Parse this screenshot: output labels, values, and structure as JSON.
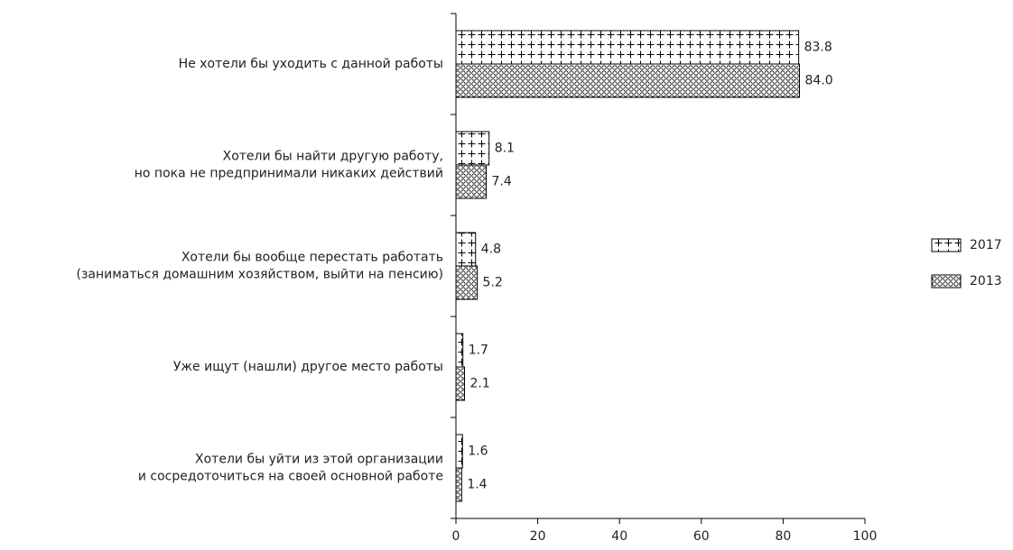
{
  "chart_data": {
    "type": "barh",
    "categories": [
      [
        "Не хотели бы уходить с данной работы"
      ],
      [
        "Хотели бы найти другую работу,",
        "но пока не предпринимали никаких действий"
      ],
      [
        "Хотели бы вообще перестать работать",
        "(заниматься домашним хозяйством, выйти на пенсию)"
      ],
      [
        "Уже ищут (нашли) другое место работы"
      ],
      [
        "Хотели бы уйти из этой организации",
        "и сосредоточиться на своей основной работе"
      ]
    ],
    "series": [
      {
        "name": "2017",
        "color": "#000000",
        "pattern": "cross",
        "values": [
          83.8,
          8.1,
          4.8,
          1.7,
          1.6
        ],
        "value_labels": [
          "83.8",
          "8.1",
          "4.8",
          "1.7",
          "1.6"
        ]
      },
      {
        "name": "2013",
        "color": "#000000",
        "pattern": "circle",
        "values": [
          84.0,
          7.4,
          5.2,
          2.1,
          1.4
        ],
        "value_labels": [
          "84.0",
          "7.4",
          "5.2",
          "2.1",
          "1.4"
        ]
      }
    ],
    "xlim": [
      0,
      100
    ],
    "xticks": [
      0,
      20,
      40,
      60,
      80,
      100
    ],
    "grid": false,
    "legend": "right"
  }
}
